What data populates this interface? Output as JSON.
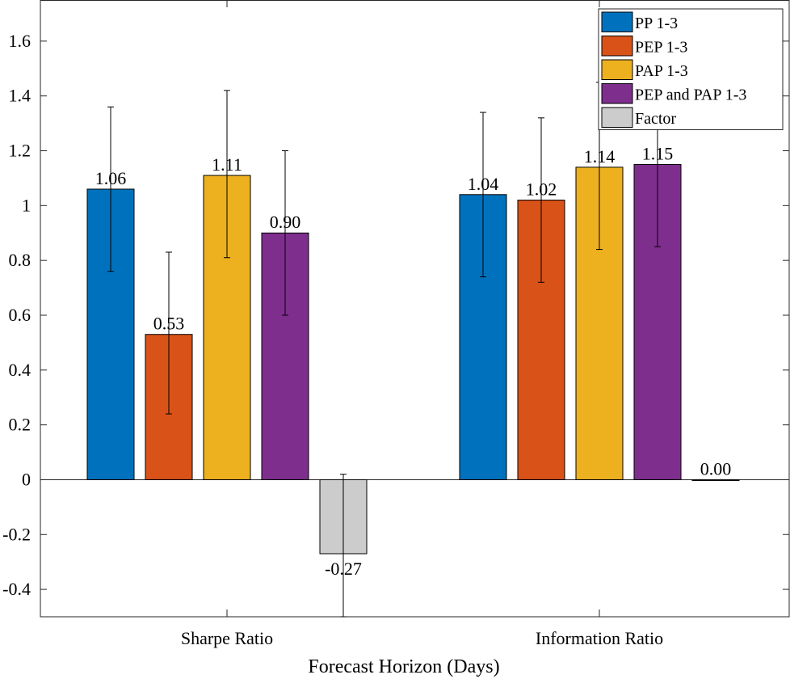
{
  "chart_data": {
    "type": "bar",
    "xlabel": "Forecast Horizon (Days)",
    "ylabel": "",
    "ylim": [
      -0.5,
      1.75
    ],
    "yticks": [
      -0.4,
      -0.2,
      0,
      0.2,
      0.4,
      0.6,
      0.8,
      1,
      1.2,
      1.4,
      1.6
    ],
    "ytick_labels": [
      "-0.4",
      "-0.2",
      "0",
      "0.2",
      "0.4",
      "0.6",
      "0.8",
      "1",
      "1.2",
      "1.4",
      "1.6"
    ],
    "categories": [
      "Sharpe Ratio",
      "Information Ratio"
    ],
    "legend_position": "top-right",
    "series": [
      {
        "name": "PP 1-3",
        "color": "#0072BD",
        "values": [
          1.06,
          1.04
        ],
        "labels": [
          "1.06",
          "1.04"
        ],
        "err_low": [
          0.76,
          0.74
        ],
        "err_high": [
          1.36,
          1.34
        ]
      },
      {
        "name": "PEP 1-3",
        "color": "#D95319",
        "values": [
          0.53,
          1.02
        ],
        "labels": [
          "0.53",
          "1.02"
        ],
        "err_low": [
          0.24,
          0.72
        ],
        "err_high": [
          0.83,
          1.32
        ]
      },
      {
        "name": "PAP 1-3",
        "color": "#EDB120",
        "values": [
          1.11,
          1.14
        ],
        "labels": [
          "1.11",
          "1.14"
        ],
        "err_low": [
          0.81,
          0.84
        ],
        "err_high": [
          1.42,
          1.45
        ]
      },
      {
        "name": "PEP and PAP 1-3",
        "color": "#7E2F8E",
        "values": [
          0.9,
          1.15
        ],
        "labels": [
          "0.90",
          "1.15"
        ],
        "err_low": [
          0.6,
          0.85
        ],
        "err_high": [
          1.2,
          1.45
        ]
      },
      {
        "name": "Factor",
        "color": "#CCCCCC",
        "values": [
          -0.27,
          0.0
        ],
        "labels": [
          "-0.27",
          "0.00"
        ],
        "err_low": [
          -0.5,
          null
        ],
        "err_high": [
          0.02,
          null
        ]
      }
    ]
  }
}
